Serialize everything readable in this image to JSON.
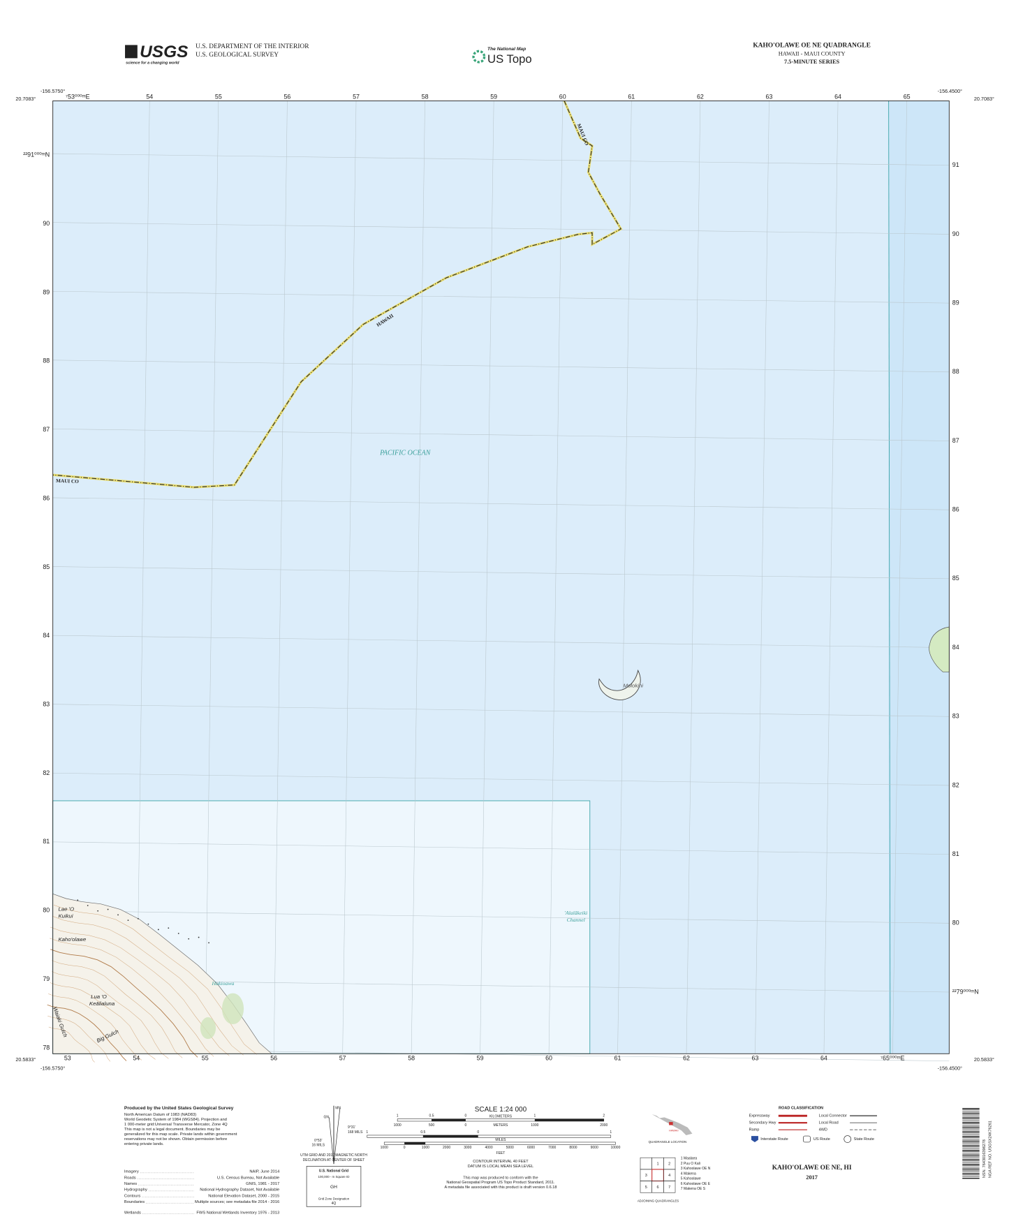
{
  "header": {
    "usgs_logo": "USGS",
    "usgs_tagline": "science for a changing world",
    "department": "U.S. DEPARTMENT OF THE INTERIOR",
    "agency": "U.S. GEOLOGICAL SURVEY",
    "national_map": "The National Map",
    "us_topo": "US Topo",
    "quadrangle": "KAHO'OLAWE OE NE QUADRANGLE",
    "state_county": "HAWAII - MAUI COUNTY",
    "series": "7.5-MINUTE SERIES"
  },
  "corners": {
    "top_left_lon": "-156.5750°",
    "top_left_lat": "20.7083°",
    "top_right_lon": "-156.4500°",
    "top_right_lat": "20.7083°",
    "bottom_left_lat": "20.5833°",
    "bottom_left_lon": "-156.5750°",
    "bottom_right_lat": "20.5833°",
    "bottom_right_lon": "-156.4500°"
  },
  "grid": {
    "top": [
      "⁷53⁰⁰⁰ᵐE",
      "54",
      "55",
      "56",
      "57",
      "58",
      "59",
      "60",
      "61",
      "62",
      "63",
      "64",
      "65"
    ],
    "bottom": [
      "53",
      "54",
      "55",
      "56",
      "57",
      "58",
      "59",
      "60",
      "61",
      "62",
      "63",
      "64",
      "⁷65⁰⁰⁰ᵐE"
    ],
    "left": [
      "²²91⁰⁰⁰ᵐN",
      "90",
      "89",
      "88",
      "87",
      "86",
      "85",
      "84",
      "83",
      "82",
      "81",
      "80",
      "79",
      "78"
    ],
    "right": [
      "91",
      "90",
      "89",
      "88",
      "87",
      "86",
      "85",
      "84",
      "83",
      "82",
      "81",
      "80",
      "²²79⁰⁰⁰ᵐN"
    ]
  },
  "map_labels": {
    "pacific_ocean": "PACIFIC OCEAN",
    "maui_co_north": "MAUI CO",
    "hawaii_boundary": "HAWAII",
    "maui_co_west": "MAUI CO",
    "molokini": "Molokini",
    "channel_1": "'Alalākeiki",
    "channel_2": "Channel",
    "hakioawa": "Hakioawa",
    "lae_1": "Lae 'O",
    "lae_2": "Kuikui",
    "kahoolawe": "Kaho'olawe",
    "lua_1": "Lua 'O",
    "lua_2": "Keālialuna",
    "big_gulch": "Big Gulch",
    "waiaki_gulch": "Waiaki Gulch"
  },
  "footer": {
    "credits": [
      "Produced by the United States Geological Survey",
      "North American Datum of 1983 (NAD83)",
      "World Geodetic System of 1984 (WGS84). Projection and",
      "1 000-meter grid:Universal Transverse Mercator, Zone 4Q",
      "This map is not a legal document. Boundaries may be",
      "generalized for this map scale. Private lands within government",
      "reservations may not be shown. Obtain permission before",
      "entering private lands."
    ],
    "sources": [
      {
        "name": "Imagery",
        "source": "NAIP, June 2014"
      },
      {
        "name": "Roads",
        "source": "U.S. Census Bureau, Not Available"
      },
      {
        "name": "Names",
        "source": "GNIS, 1981 - 2017"
      },
      {
        "name": "Hydrography",
        "source": "National Hydrography Dataset, Not Available"
      },
      {
        "name": "Contours",
        "source": "National Elevation Dataset, 2000 - 2015"
      },
      {
        "name": "Boundaries",
        "source": "Multiple sources; see metadata file 2014 - 2016"
      },
      {
        "name": "Wetlands",
        "source": "FWS National Wetlands Inventory 1976 - 2013"
      }
    ],
    "declination": {
      "mn": "MN",
      "gn": "GN",
      "angle_1": "9°31'",
      "mils_1": "168 MILS",
      "angle_2": "0°53'",
      "mils_2": "16 MILS",
      "note_1": "UTM GRID AND 2017 MAGNETIC NORTH",
      "note_2": "DECLINATION AT CENTER OF SHEET"
    },
    "usng": {
      "title": "U.S. National Grid",
      "square_label": "100,000 - m Square ID",
      "square_id": "GH",
      "zone_label": "Grid Zone Designation",
      "zone": "4Q"
    },
    "scale": {
      "title": "SCALE 1:24 000",
      "km_unit": "KILOMETERS",
      "km_labels": [
        "1",
        "0.5",
        "0",
        "1",
        "2"
      ],
      "m_unit": "METERS",
      "m_labels": [
        "1000",
        "500",
        "0",
        "1000",
        "2000"
      ],
      "mi_unit": "MILES",
      "mi_labels": [
        "1",
        "0.5",
        "0",
        "1"
      ],
      "ft_unit": "FEET",
      "ft_labels": [
        "1000",
        "0",
        "1000",
        "2000",
        "3000",
        "4000",
        "5000",
        "6000",
        "7000",
        "8000",
        "9000",
        "10000"
      ]
    },
    "contour": [
      "CONTOUR INTERVAL 40 FEET",
      "DATUM IS LOCAL MEAN SEA LEVEL"
    ],
    "metadata": [
      "This map was produced to conform with the",
      "National Geospatial Program US Topo Product Standard, 2011.",
      "A metadata file associated with this product is draft version 0.6.18"
    ],
    "location": {
      "state": "HAWAII",
      "caption": "QUADRANGLE LOCATION"
    },
    "adjoining": {
      "cells": [
        "1",
        "2",
        "3",
        "4",
        "5",
        "6",
        "7"
      ],
      "names": [
        "1 Maalaea",
        "2 Puu O Kali",
        "3 Kahoolawe OE N",
        "4 Makena",
        "5 Kahoolawe",
        "6 Kahoolawe OE E",
        "7 Makena OE S"
      ],
      "caption": "ADJOINING QUADRANGLES"
    },
    "roads": {
      "title": "ROAD CLASSIFICATION",
      "expressway": "Expressway",
      "secondary": "Secondary Hwy",
      "ramp": "Ramp",
      "local_connector": "Local Connector",
      "local_road": "Local Road",
      "fourwd": "4WD",
      "interstate": "Interstate Route",
      "us_route": "US Route",
      "state_route": "State Route"
    },
    "sheet_title": "KAHO'OLAWE OE NE, HI",
    "year": "2017",
    "barcode": {
      "nsn": "NSN. 7643016396278",
      "nga": "NGA REF NO. USGSX24K76261"
    }
  }
}
